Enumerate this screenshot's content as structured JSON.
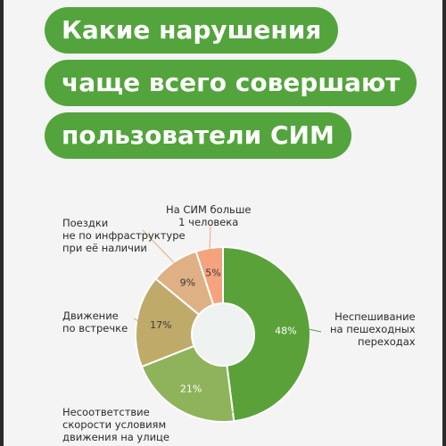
{
  "title": {
    "line1": "Какие нарушения",
    "line2": "чаще всего совершают",
    "line3": "пользователи СИМ"
  },
  "colors": {
    "title_bg": "#53a43c",
    "page_bg": "#f3f4f3"
  },
  "chart_data": {
    "type": "pie",
    "variant": "donut",
    "title": "Какие нарушения чаще всего совершают пользователи СИМ",
    "slices": [
      {
        "label_line1": "Неспешивание",
        "label_line2": "на пешеходных",
        "label_line3": "переходах",
        "value": 48,
        "value_label": "48%",
        "color": "#5aa13a"
      },
      {
        "label_line1": "Несоответствие",
        "label_line2": "скорости условиям",
        "label_line3": "движения на улице",
        "value": 21,
        "value_label": "21%",
        "color": "#8fb35a"
      },
      {
        "label_line1": "Движение",
        "label_line2": "по встречке",
        "label_line3": "",
        "value": 17,
        "value_label": "17%",
        "color": "#bfaa69"
      },
      {
        "label_line1": "Поездки",
        "label_line2": "не по инфраструктуре",
        "label_line3": "при её наличии",
        "value": 9,
        "value_label": "9%",
        "color": "#deb083"
      },
      {
        "label_line1": "На СИМ больше",
        "label_line2": "1 человека",
        "label_line3": "",
        "value": 5,
        "value_label": "5%",
        "color": "#f5a37e"
      }
    ]
  }
}
